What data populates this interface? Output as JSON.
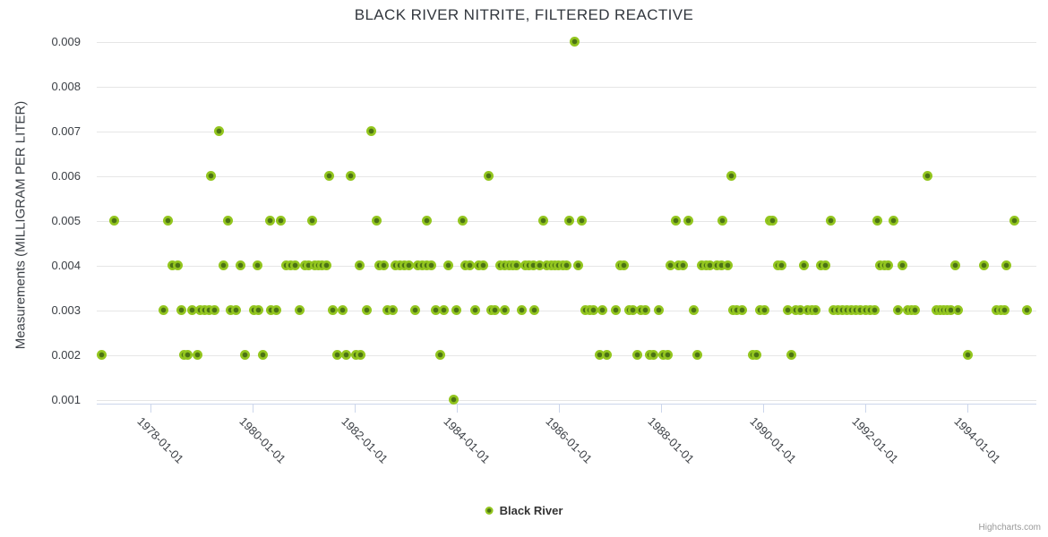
{
  "credit": "Highcharts.com",
  "chart_data": {
    "type": "scatter",
    "title": "BLACK RIVER NITRITE, FILTERED REACTIVE",
    "xlabel": "",
    "ylabel": "Measurements (MILLIGRAM PER LITER)",
    "grid": "horizontal-only",
    "xlim": [
      1976.95,
      1995.35
    ],
    "ylim": [
      0.001,
      0.009
    ],
    "y_ticks": [
      0.001,
      0.002,
      0.003,
      0.004,
      0.005,
      0.006,
      0.007,
      0.008,
      0.009
    ],
    "y_tick_labels": [
      "0.001",
      "0.002",
      "0.003",
      "0.004",
      "0.005",
      "0.006",
      "0.007",
      "0.008",
      "0.009"
    ],
    "x_tick_years": [
      1978,
      1980,
      1982,
      1984,
      1986,
      1988,
      1990,
      1992,
      1994
    ],
    "x_tick_labels": [
      "1978-01-01",
      "1980-01-01",
      "1982-01-01",
      "1984-01-01",
      "1986-01-01",
      "1988-01-01",
      "1990-01-01",
      "1992-01-01",
      "1994-01-01"
    ],
    "legend": {
      "position": "bottom-center",
      "items": [
        {
          "label": "Black River",
          "marker": "circle-icon"
        }
      ]
    },
    "series": [
      {
        "name": "Black River",
        "marker_outer_color": "#93c61f",
        "marker_inner_color": "#4c7314",
        "points": [
          [
            1983.94,
            0.001
          ],
          [
            1986.3,
            0.009
          ],
          [
            1979.34,
            0.007
          ],
          [
            1982.33,
            0.007
          ],
          [
            1979.18,
            0.006
          ],
          [
            1981.51,
            0.006
          ],
          [
            1981.92,
            0.006
          ],
          [
            1984.63,
            0.006
          ],
          [
            1989.38,
            0.006
          ],
          [
            1993.22,
            0.006
          ],
          [
            1977.3,
            0.005
          ],
          [
            1978.34,
            0.005
          ],
          [
            1979.52,
            0.005
          ],
          [
            1980.34,
            0.005
          ],
          [
            1980.56,
            0.005
          ],
          [
            1981.16,
            0.005
          ],
          [
            1982.43,
            0.005
          ],
          [
            1983.42,
            0.005
          ],
          [
            1984.12,
            0.005
          ],
          [
            1985.7,
            0.005
          ],
          [
            1986.21,
            0.005
          ],
          [
            1986.45,
            0.005
          ],
          [
            1988.29,
            0.005
          ],
          [
            1988.54,
            0.005
          ],
          [
            1989.2,
            0.005
          ],
          [
            1990.13,
            0.005
          ],
          [
            1990.19,
            0.005
          ],
          [
            1991.32,
            0.005
          ],
          [
            1992.24,
            0.005
          ],
          [
            1992.55,
            0.005
          ],
          [
            1994.92,
            0.005
          ],
          [
            1978.43,
            0.004
          ],
          [
            1978.53,
            0.004
          ],
          [
            1979.43,
            0.004
          ],
          [
            1979.77,
            0.004
          ],
          [
            1980.09,
            0.004
          ],
          [
            1980.66,
            0.004
          ],
          [
            1980.75,
            0.004
          ],
          [
            1980.84,
            0.004
          ],
          [
            1981.03,
            0.004
          ],
          [
            1981.1,
            0.004
          ],
          [
            1981.22,
            0.004
          ],
          [
            1981.3,
            0.004
          ],
          [
            1981.37,
            0.004
          ],
          [
            1981.45,
            0.004
          ],
          [
            1982.1,
            0.004
          ],
          [
            1982.49,
            0.004
          ],
          [
            1982.57,
            0.004
          ],
          [
            1982.8,
            0.004
          ],
          [
            1982.89,
            0.004
          ],
          [
            1982.98,
            0.004
          ],
          [
            1983.07,
            0.004
          ],
          [
            1983.24,
            0.004
          ],
          [
            1983.33,
            0.004
          ],
          [
            1983.42,
            0.004
          ],
          [
            1983.5,
            0.004
          ],
          [
            1983.84,
            0.004
          ],
          [
            1984.17,
            0.004
          ],
          [
            1984.26,
            0.004
          ],
          [
            1984.43,
            0.004
          ],
          [
            1984.51,
            0.004
          ],
          [
            1984.86,
            0.004
          ],
          [
            1984.94,
            0.004
          ],
          [
            1985.02,
            0.004
          ],
          [
            1985.09,
            0.004
          ],
          [
            1985.17,
            0.004
          ],
          [
            1985.34,
            0.004
          ],
          [
            1985.41,
            0.004
          ],
          [
            1985.5,
            0.004
          ],
          [
            1985.62,
            0.004
          ],
          [
            1985.76,
            0.004
          ],
          [
            1985.85,
            0.004
          ],
          [
            1985.92,
            0.004
          ],
          [
            1985.99,
            0.004
          ],
          [
            1986.08,
            0.004
          ],
          [
            1986.15,
            0.004
          ],
          [
            1986.38,
            0.004
          ],
          [
            1987.2,
            0.004
          ],
          [
            1987.28,
            0.004
          ],
          [
            1988.19,
            0.004
          ],
          [
            1988.35,
            0.004
          ],
          [
            1988.43,
            0.004
          ],
          [
            1988.8,
            0.004
          ],
          [
            1988.88,
            0.004
          ],
          [
            1988.96,
            0.004
          ],
          [
            1989.09,
            0.004
          ],
          [
            1989.18,
            0.004
          ],
          [
            1989.3,
            0.004
          ],
          [
            1990.29,
            0.004
          ],
          [
            1990.36,
            0.004
          ],
          [
            1990.79,
            0.004
          ],
          [
            1991.14,
            0.004
          ],
          [
            1991.22,
            0.004
          ],
          [
            1992.29,
            0.004
          ],
          [
            1992.37,
            0.004
          ],
          [
            1992.45,
            0.004
          ],
          [
            1992.72,
            0.004
          ],
          [
            1993.76,
            0.004
          ],
          [
            1994.32,
            0.004
          ],
          [
            1994.76,
            0.004
          ],
          [
            1978.26,
            0.003
          ],
          [
            1978.61,
            0.003
          ],
          [
            1978.82,
            0.003
          ],
          [
            1978.98,
            0.003
          ],
          [
            1979.07,
            0.003
          ],
          [
            1979.16,
            0.003
          ],
          [
            1979.26,
            0.003
          ],
          [
            1979.58,
            0.003
          ],
          [
            1979.67,
            0.003
          ],
          [
            1980.03,
            0.003
          ],
          [
            1980.12,
            0.003
          ],
          [
            1980.37,
            0.003
          ],
          [
            1980.46,
            0.003
          ],
          [
            1980.92,
            0.003
          ],
          [
            1981.57,
            0.003
          ],
          [
            1981.76,
            0.003
          ],
          [
            1982.24,
            0.003
          ],
          [
            1982.65,
            0.003
          ],
          [
            1982.74,
            0.003
          ],
          [
            1983.18,
            0.003
          ],
          [
            1983.59,
            0.003
          ],
          [
            1983.74,
            0.003
          ],
          [
            1983.99,
            0.003
          ],
          [
            1984.36,
            0.003
          ],
          [
            1984.67,
            0.003
          ],
          [
            1984.74,
            0.003
          ],
          [
            1984.94,
            0.003
          ],
          [
            1985.27,
            0.003
          ],
          [
            1985.51,
            0.003
          ],
          [
            1986.51,
            0.003
          ],
          [
            1986.6,
            0.003
          ],
          [
            1986.68,
            0.003
          ],
          [
            1986.85,
            0.003
          ],
          [
            1987.12,
            0.003
          ],
          [
            1987.37,
            0.003
          ],
          [
            1987.45,
            0.003
          ],
          [
            1987.61,
            0.003
          ],
          [
            1987.69,
            0.003
          ],
          [
            1987.96,
            0.003
          ],
          [
            1988.64,
            0.003
          ],
          [
            1989.42,
            0.003
          ],
          [
            1989.49,
            0.003
          ],
          [
            1989.59,
            0.003
          ],
          [
            1989.94,
            0.003
          ],
          [
            1990.03,
            0.003
          ],
          [
            1990.49,
            0.003
          ],
          [
            1990.64,
            0.003
          ],
          [
            1990.72,
            0.003
          ],
          [
            1990.87,
            0.003
          ],
          [
            1990.95,
            0.003
          ],
          [
            1991.02,
            0.003
          ],
          [
            1991.37,
            0.003
          ],
          [
            1991.46,
            0.003
          ],
          [
            1991.55,
            0.003
          ],
          [
            1991.64,
            0.003
          ],
          [
            1991.72,
            0.003
          ],
          [
            1991.81,
            0.003
          ],
          [
            1991.9,
            0.003
          ],
          [
            1992.0,
            0.003
          ],
          [
            1992.09,
            0.003
          ],
          [
            1992.18,
            0.003
          ],
          [
            1992.64,
            0.003
          ],
          [
            1992.83,
            0.003
          ],
          [
            1992.9,
            0.003
          ],
          [
            1992.98,
            0.003
          ],
          [
            1993.39,
            0.003
          ],
          [
            1993.46,
            0.003
          ],
          [
            1993.53,
            0.003
          ],
          [
            1993.6,
            0.003
          ],
          [
            1993.68,
            0.003
          ],
          [
            1993.82,
            0.003
          ],
          [
            1994.57,
            0.003
          ],
          [
            1994.65,
            0.003
          ],
          [
            1994.73,
            0.003
          ],
          [
            1995.17,
            0.003
          ],
          [
            1977.04,
            0.002
          ],
          [
            1978.66,
            0.002
          ],
          [
            1978.73,
            0.002
          ],
          [
            1978.92,
            0.002
          ],
          [
            1979.86,
            0.002
          ],
          [
            1980.21,
            0.002
          ],
          [
            1981.66,
            0.002
          ],
          [
            1981.83,
            0.002
          ],
          [
            1982.03,
            0.002
          ],
          [
            1982.11,
            0.002
          ],
          [
            1983.67,
            0.002
          ],
          [
            1986.8,
            0.002
          ],
          [
            1986.94,
            0.002
          ],
          [
            1987.53,
            0.002
          ],
          [
            1987.78,
            0.002
          ],
          [
            1987.85,
            0.002
          ],
          [
            1988.04,
            0.002
          ],
          [
            1988.13,
            0.002
          ],
          [
            1988.71,
            0.002
          ],
          [
            1989.79,
            0.002
          ],
          [
            1989.87,
            0.002
          ],
          [
            1990.56,
            0.002
          ],
          [
            1994.0,
            0.002
          ]
        ]
      }
    ]
  }
}
